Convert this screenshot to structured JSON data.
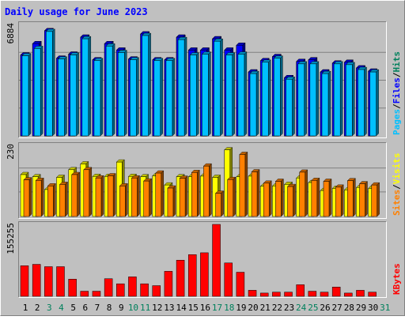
{
  "title": "Daily usage for June 2023",
  "colors": {
    "background": "#c0c0c0",
    "border_light": "#ffffff",
    "border_dark": "#808080",
    "title": "#0000ff",
    "hits": "#00805c",
    "files": "#0000ff",
    "pages": "#00c0ff",
    "visits": "#ffff00",
    "sites": "#ff8000",
    "kbytes": "#ff0000",
    "weekend_day": "#00805c",
    "weekday": "#000000",
    "gridline": "#808080"
  },
  "chart_data": [
    {
      "type": "bar",
      "panel": "hits_files_pages",
      "y_axis_label": "6884",
      "ylim": [
        0,
        6884
      ],
      "right_labels": [
        "Pages",
        "/",
        "Files",
        "/",
        "Hits"
      ],
      "categories": [
        "1",
        "2",
        "3",
        "4",
        "5",
        "6",
        "7",
        "8",
        "9",
        "10",
        "11",
        "12",
        "13",
        "14",
        "15",
        "16",
        "17",
        "18",
        "19",
        "20",
        "21",
        "22",
        "23",
        "24",
        "25",
        "26",
        "27",
        "28",
        "29",
        "30"
      ],
      "series": [
        {
          "name": "Hits",
          "values": [
            5000,
            5700,
            6500,
            4800,
            5050,
            6100,
            4700,
            5700,
            5300,
            4750,
            6300,
            4700,
            4700,
            6100,
            5300,
            5300,
            6000,
            5300,
            5600,
            3950,
            4650,
            4900,
            3600,
            4600,
            4700,
            3950,
            4500,
            4550,
            4200,
            4000
          ]
        },
        {
          "name": "Files",
          "values": [
            5000,
            5700,
            6500,
            4800,
            5050,
            6100,
            4700,
            5700,
            5300,
            4750,
            6300,
            4700,
            4700,
            6100,
            5300,
            5300,
            6000,
            5300,
            5600,
            3950,
            4650,
            4900,
            3600,
            4600,
            4700,
            3950,
            4500,
            4550,
            4200,
            4000
          ]
        },
        {
          "name": "Pages",
          "values": [
            4950,
            5400,
            6450,
            4750,
            5000,
            6000,
            4650,
            5550,
            5150,
            4700,
            6200,
            4650,
            4650,
            5950,
            5000,
            5050,
            5850,
            5000,
            5050,
            3850,
            4550,
            4800,
            3500,
            4450,
            4450,
            3850,
            4450,
            4400,
            4100,
            3950
          ]
        }
      ]
    },
    {
      "type": "bar",
      "panel": "visits_sites",
      "y_axis_label": "230",
      "ylim": [
        0,
        230
      ],
      "right_labels": [
        "Sites",
        "/",
        "Visits"
      ],
      "categories": [
        "1",
        "2",
        "3",
        "4",
        "5",
        "6",
        "7",
        "8",
        "9",
        "10",
        "11",
        "12",
        "13",
        "14",
        "15",
        "16",
        "17",
        "18",
        "19",
        "20",
        "21",
        "22",
        "23",
        "24",
        "25",
        "26",
        "27",
        "28",
        "29",
        "30"
      ],
      "series": [
        {
          "name": "Visits",
          "values": [
            137,
            130,
            88,
            128,
            153,
            172,
            131,
            131,
            178,
            131,
            130,
            133,
            103,
            130,
            130,
            132,
            128,
            218,
            130,
            132,
            99,
            100,
            105,
            126,
            111,
            85,
            92,
            87,
            95,
            92
          ]
        },
        {
          "name": "Sites",
          "values": [
            120,
            118,
            100,
            105,
            137,
            153,
            126,
            133,
            100,
            126,
            116,
            142,
            93,
            125,
            144,
            165,
            76,
            121,
            203,
            146,
            109,
            115,
            98,
            145,
            118,
            115,
            96,
            117,
            107,
            103
          ]
        }
      ]
    },
    {
      "type": "bar",
      "panel": "kbytes",
      "y_axis_label": "155255",
      "ylim": [
        0,
        155255
      ],
      "right_labels": [
        "KBytes"
      ],
      "categories": [
        "1",
        "2",
        "3",
        "4",
        "5",
        "6",
        "7",
        "8",
        "9",
        "10",
        "11",
        "12",
        "13",
        "14",
        "15",
        "16",
        "17",
        "18",
        "19",
        "20",
        "21",
        "22",
        "23",
        "24",
        "25",
        "26",
        "27",
        "28",
        "29",
        "30"
      ],
      "series": [
        {
          "name": "KBytes",
          "values": [
            66000,
            69000,
            64000,
            64000,
            37000,
            11000,
            11000,
            38000,
            27000,
            42000,
            27000,
            23000,
            54000,
            78000,
            90000,
            94000,
            155255,
            72000,
            52000,
            13000,
            7000,
            9000,
            9000,
            25000,
            11000,
            9000,
            20000,
            7000,
            13000,
            9000
          ]
        }
      ]
    }
  ],
  "x_axis": {
    "days": [
      {
        "label": "1",
        "weekend": false
      },
      {
        "label": "2",
        "weekend": false
      },
      {
        "label": "3",
        "weekend": true
      },
      {
        "label": "4",
        "weekend": true
      },
      {
        "label": "5",
        "weekend": false
      },
      {
        "label": "6",
        "weekend": false
      },
      {
        "label": "7",
        "weekend": false
      },
      {
        "label": "8",
        "weekend": false
      },
      {
        "label": "9",
        "weekend": false
      },
      {
        "label": "10",
        "weekend": true
      },
      {
        "label": "11",
        "weekend": true
      },
      {
        "label": "12",
        "weekend": false
      },
      {
        "label": "13",
        "weekend": false
      },
      {
        "label": "14",
        "weekend": false
      },
      {
        "label": "15",
        "weekend": false
      },
      {
        "label": "16",
        "weekend": false
      },
      {
        "label": "17",
        "weekend": true
      },
      {
        "label": "18",
        "weekend": true
      },
      {
        "label": "19",
        "weekend": false
      },
      {
        "label": "20",
        "weekend": false
      },
      {
        "label": "21",
        "weekend": false
      },
      {
        "label": "22",
        "weekend": false
      },
      {
        "label": "23",
        "weekend": false
      },
      {
        "label": "24",
        "weekend": true
      },
      {
        "label": "25",
        "weekend": true
      },
      {
        "label": "26",
        "weekend": false
      },
      {
        "label": "27",
        "weekend": false
      },
      {
        "label": "28",
        "weekend": false
      },
      {
        "label": "29",
        "weekend": false
      },
      {
        "label": "30",
        "weekend": false
      },
      {
        "label": "31",
        "weekend": true
      }
    ]
  }
}
